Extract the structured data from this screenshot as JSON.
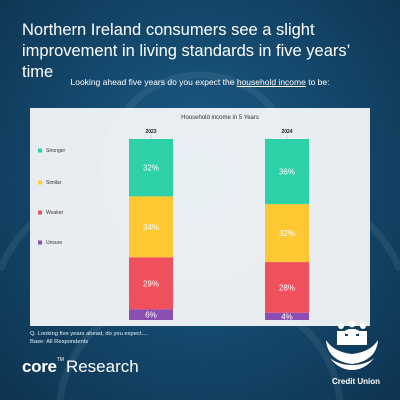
{
  "title": "Northern Ireland consumers see a slight improvement in living standards in five years’ time",
  "question": {
    "prefix": "Looking ahead five years do you expect the ",
    "highlight": "household income",
    "suffix": " to be:"
  },
  "chart_data": {
    "type": "bar",
    "stacked": true,
    "title": "Household income in 5 Years",
    "categories": [
      "2023",
      "2024"
    ],
    "series": [
      {
        "name": "Unsure",
        "values": [
          6,
          4
        ],
        "labels": [
          "6%",
          "4%"
        ],
        "color": "#8a4fb0"
      },
      {
        "name": "Weaker",
        "values": [
          29,
          28
        ],
        "labels": [
          "29%",
          "28%"
        ],
        "color": "#f0505c"
      },
      {
        "name": "Similar",
        "values": [
          34,
          32
        ],
        "labels": [
          "34%",
          "32%"
        ],
        "color": "#fec832"
      },
      {
        "name": "Stronger",
        "values": [
          32,
          36
        ],
        "labels": [
          "32%",
          "36%"
        ],
        "color": "#2ed0a8"
      }
    ],
    "legend": [
      "Stronger",
      "Similar",
      "Weaker",
      "Unsure"
    ],
    "legend_position": "left",
    "grid": false
  },
  "footnote": {
    "line1": "Q. Looking five years ahead, do you expect....",
    "line2": "Base: All Respondents"
  },
  "brand": {
    "core": "core",
    "tm": "TM",
    "research": "Research"
  },
  "logo": {
    "text": "Credit Union"
  },
  "colors": {
    "background": "#154a6f",
    "panel": "#ffffff"
  }
}
